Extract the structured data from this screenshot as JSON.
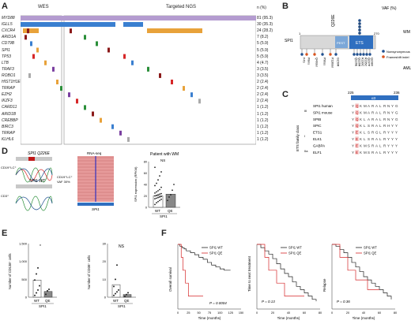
{
  "panelA": {
    "label": "A",
    "wes_label": "WES",
    "ngs_label": "Targeted NGS",
    "pct_header": "n (%)",
    "genes": [
      {
        "name": "MYD88",
        "n": "81 (95.3)"
      },
      {
        "name": "IGLL5",
        "n": "30 (35.3)"
      },
      {
        "name": "CXCR4",
        "n": "24 (28.2)"
      },
      {
        "name": "ARID1A",
        "n": "7 (8.2)"
      },
      {
        "name": "CD79B",
        "n": "5 (5.9)"
      },
      {
        "name": "SPI1",
        "n": "5 (5.9)"
      },
      {
        "name": "TP53",
        "n": "5 (5.9)"
      },
      {
        "name": "LTB",
        "n": "4 (4.7)"
      },
      {
        "name": "TRAF3",
        "n": "3 (3.5)"
      },
      {
        "name": "ROBO1",
        "n": "3 (3.5)"
      },
      {
        "name": "HIST1H1E",
        "n": "2 (2.4)"
      },
      {
        "name": "TRRAP",
        "n": "2 (2.4)"
      },
      {
        "name": "EZH2",
        "n": "2 (2.4)"
      },
      {
        "name": "IKZF3",
        "n": "2 (2.4)"
      },
      {
        "name": "CARD11",
        "n": "1 (1.2)"
      },
      {
        "name": "ARID1B",
        "n": "1 (1.2)"
      },
      {
        "name": "CREBBP",
        "n": "1 (1.2)"
      },
      {
        "name": "BIRC3",
        "n": "1 (1.2)"
      },
      {
        "name": "TRRAP",
        "n": "1 (1.2)"
      },
      {
        "name": "KLHL6",
        "n": "1 (1.2)"
      }
    ]
  },
  "panelB": {
    "label": "B",
    "protein": "SPI1",
    "start": "1",
    "end": "270",
    "domains": [
      "PEST",
      "ETS"
    ],
    "vaf_label": "VAF (%)",
    "top_mutation": "Q226E",
    "wm_label": "WM",
    "aml_label": "AML",
    "legend": [
      "Nonsynonymous",
      "Frameshift indel"
    ],
    "aml_mutations": [
      "F4S",
      "P8ins",
      "Q40del",
      "P90ss",
      "P116del",
      "G150R",
      "Q226E",
      "Q226R",
      "R230C",
      "R235C",
      "Q237P",
      "Q238X"
    ],
    "colors": {
      "nonsyn": "#1f4f8f",
      "frameshift": "#d9541e"
    }
  },
  "panelC": {
    "label": "C",
    "range_start": "225",
    "range_end": "236",
    "helix": "α3",
    "family_label": "ETS family class",
    "classes": [
      "III",
      "I",
      "IIa"
    ],
    "rows": [
      {
        "name": "SPI1 human",
        "seq": "YQKMARALRNYG"
      },
      {
        "name": "SPI1 mouse",
        "seq": "YQKMARALRNYG"
      },
      {
        "name": "SPIB",
        "seq": "YQKLARALRNYG"
      },
      {
        "name": "SPIC",
        "seq": "YQKLSRALRHYY"
      },
      {
        "name": "ETS1",
        "seq": "YEKLSRGLRYYY"
      },
      {
        "name": "ELK1",
        "seq": "YEKLSRALRYYY"
      },
      {
        "name": "GABPA",
        "seq": "YEKMSRALRYYY"
      },
      {
        "name": "ELF1",
        "seq": "YEKMSRALRYYY"
      }
    ]
  },
  "panelD": {
    "label": "D",
    "mut_title": "SPI1 Q226E",
    "wt_title": "SPI1 WT",
    "cd19_label": "CD19⁺LC⁺",
    "cd3_label": "CD3⁺",
    "rnaseq": "RNA-seq",
    "vaf": "VAF 30%",
    "spi1": "SPI1",
    "plot_title": "Patient with WM",
    "ns": "NS",
    "ylabel": "SPI1 expression (RPKM)",
    "xgroup": "SPI1",
    "ticks": [
      "0",
      "20",
      "40",
      "60",
      "80"
    ],
    "chart_data": {
      "type": "bar",
      "categories": [
        "WT",
        "QE"
      ],
      "values": [
        20,
        23
      ],
      "ylabel": "SPI1 expression (RPKM)",
      "ylim": [
        0,
        80
      ],
      "points": {
        "WT": [
          5,
          8,
          10,
          12,
          14,
          15,
          16,
          17,
          18,
          19,
          20,
          21,
          22,
          23,
          24,
          25,
          27,
          29,
          31,
          35,
          38,
          42,
          48,
          55,
          62,
          70
        ],
        "QE": [
          12,
          18,
          22,
          30,
          40
        ]
      }
    }
  },
  "panelE": {
    "label": "E",
    "left": {
      "ylabel": "Number of CD138⁺ cells",
      "sig": "*",
      "xgroup": "SPI1",
      "ticks": [
        "0",
        "500",
        "1,000",
        "1,500"
      ],
      "chart_data": {
        "type": "bar",
        "categories": [
          "WT",
          "QE"
        ],
        "values": [
          480,
          160
        ],
        "ylim": [
          0,
          1500
        ],
        "points": {
          "WT": [
            50,
            120,
            200,
            320,
            480,
            650,
            820
          ],
          "QE": [
            80,
            180,
            220
          ]
        }
      }
    },
    "right": {
      "ylabel": "Number of CD38⁺ cells",
      "sig": "NS",
      "xgroup": "SPI1",
      "ticks": [
        "0",
        "10",
        "20",
        "30"
      ],
      "chart_data": {
        "type": "bar",
        "categories": [
          "WT",
          "QE"
        ],
        "values": [
          7,
          1.5
        ],
        "ylim": [
          0,
          30
        ],
        "points": {
          "WT": [
            1,
            2,
            3,
            4,
            6,
            10,
            18
          ],
          "QE": [
            0.5,
            1.5,
            2.5
          ]
        }
      }
    }
  },
  "panelF": {
    "label": "F",
    "legend": [
      "SPI1 WT",
      "SPI1 QE"
    ],
    "colors": {
      "wt": "#222222",
      "qe": "#d62728"
    },
    "xlabel": "Time (months)",
    "plots": [
      {
        "ylabel": "Overall survival",
        "p": "P = 0.0004",
        "xticks": [
          "0",
          "25",
          "50",
          "75",
          "100",
          "125",
          "150"
        ],
        "chart_data": {
          "type": "line",
          "xlim": [
            0,
            150
          ],
          "ylim": [
            0,
            1
          ],
          "series": [
            {
              "name": "SPI1 WT",
              "x": [
                0,
                5,
                10,
                15,
                20,
                30,
                40,
                50,
                60,
                70,
                80,
                90,
                100,
                110,
                125
              ],
              "y": [
                1,
                0.97,
                0.95,
                0.93,
                0.9,
                0.87,
                0.84,
                0.8,
                0.77,
                0.72,
                0.68,
                0.65,
                0.62,
                0.6,
                0.6
              ]
            },
            {
              "name": "SPI1 QE",
              "x": [
                0,
                8,
                12,
                18,
                25,
                60
              ],
              "y": [
                1,
                0.8,
                0.6,
                0.4,
                0.2,
                0.2
              ]
            }
          ]
        }
      },
      {
        "ylabel": "Time to next treatment",
        "p": "P = 0.13",
        "xticks": [
          "0",
          "20",
          "40",
          "60",
          "80"
        ],
        "chart_data": {
          "type": "line",
          "xlim": [
            0,
            80
          ],
          "ylim": [
            0,
            1
          ],
          "series": [
            {
              "name": "SPI1 WT",
              "x": [
                0,
                5,
                10,
                15,
                20,
                25,
                30,
                35,
                40,
                45,
                50,
                55,
                60,
                65,
                70,
                75
              ],
              "y": [
                1,
                0.95,
                0.9,
                0.85,
                0.78,
                0.7,
                0.62,
                0.55,
                0.5,
                0.42,
                0.35,
                0.3,
                0.25,
                0.2,
                0.15,
                0.12
              ]
            },
            {
              "name": "SPI1 QE",
              "x": [
                0,
                10,
                15,
                25,
                35,
                60
              ],
              "y": [
                1,
                0.8,
                0.6,
                0.4,
                0.2,
                0.2
              ]
            }
          ]
        }
      },
      {
        "ylabel": "Relapse",
        "p": "P = 0.36",
        "xticks": [
          "0",
          "20",
          "40",
          "60",
          "80"
        ],
        "chart_data": {
          "type": "line",
          "xlim": [
            0,
            80
          ],
          "ylim": [
            0,
            1
          ],
          "series": [
            {
              "name": "SPI1 WT",
              "x": [
                0,
                5,
                10,
                15,
                20,
                25,
                30,
                35,
                40,
                45,
                50,
                55,
                60,
                65,
                70,
                75
              ],
              "y": [
                1,
                0.97,
                0.92,
                0.87,
                0.8,
                0.72,
                0.65,
                0.58,
                0.5,
                0.45,
                0.4,
                0.35,
                0.3,
                0.25,
                0.2,
                0.15
              ]
            },
            {
              "name": "SPI1 QE",
              "x": [
                0,
                10,
                20,
                30,
                45,
                60
              ],
              "y": [
                1,
                0.8,
                0.6,
                0.45,
                0.3,
                0.3
              ]
            }
          ]
        }
      }
    ]
  }
}
